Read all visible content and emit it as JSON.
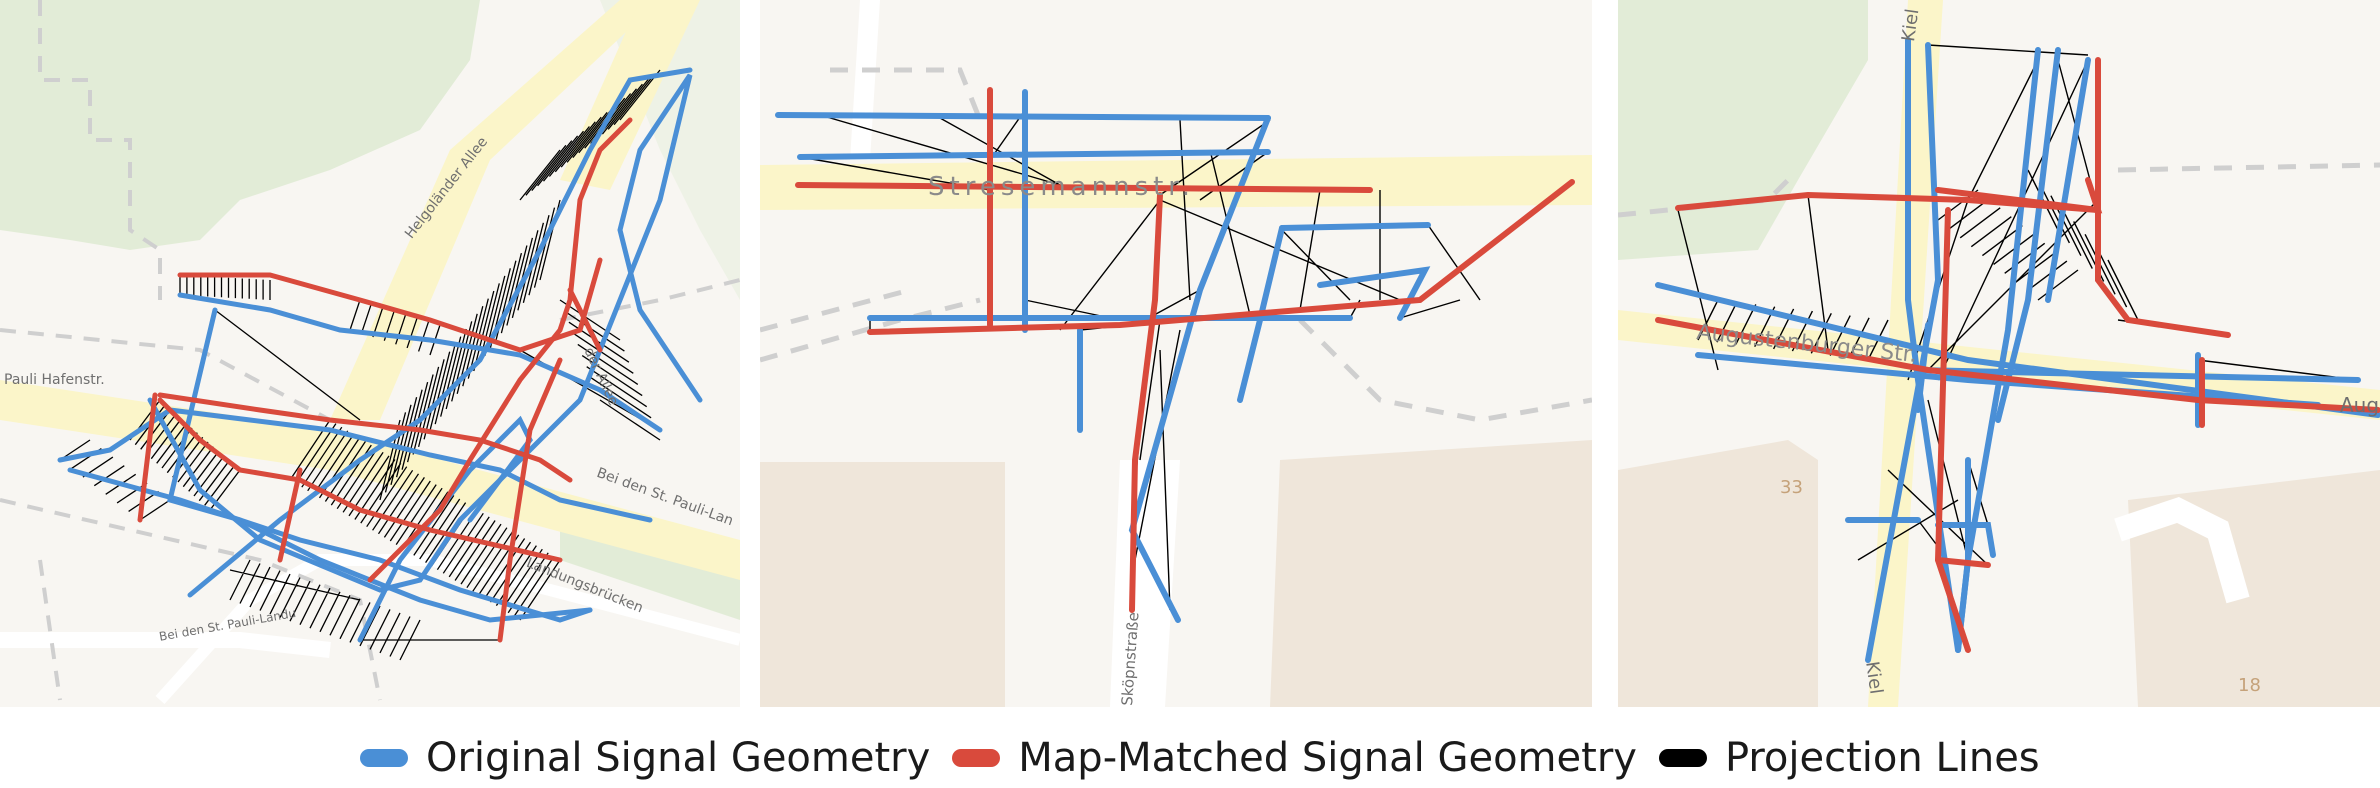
{
  "panels": [
    {
      "streets": [
        "Helgoländer Allee",
        "Pauli Hafenstr.",
        "Bei den St. Pauli-Lan",
        "Landungsbrücken",
        "Bei den St. Pauli-Landu",
        "der Allee"
      ]
    },
    {
      "streets": [
        "Stresemannstr.",
        "Sköpnstraße"
      ]
    },
    {
      "streets": [
        "Kiel",
        "Augustenburger Str.",
        "Aug",
        "Kiel"
      ],
      "numbers": [
        "33",
        "18"
      ]
    }
  ],
  "legend": [
    {
      "label": "Original Signal Geometry",
      "color": "#4a8fd6",
      "icon": "pill-swatch"
    },
    {
      "label": "Map-Matched Signal Geometry",
      "color": "#d94a3c",
      "icon": "pill-swatch"
    },
    {
      "label": "Projection Lines",
      "color": "#000000",
      "icon": "pill-swatch"
    }
  ],
  "colors": {
    "original": "#4a8fd6",
    "matched": "#d94a3c",
    "projection": "#000000",
    "park": "#e2ecd7",
    "road": "#fbf5c9",
    "building": "#efe6da",
    "background": "#f8f6f2"
  }
}
